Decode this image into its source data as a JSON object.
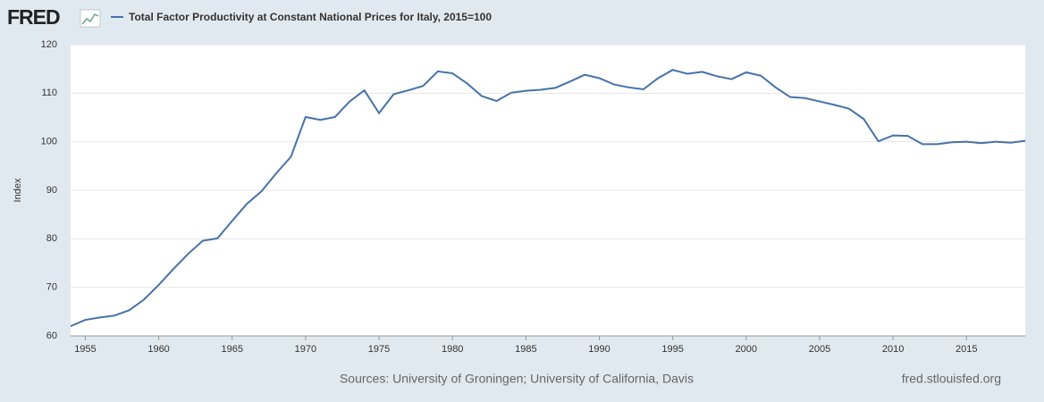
{
  "chart_data": {
    "type": "line",
    "logo": "FRED",
    "ylabel": "Index",
    "source": "Sources: University of Groningen; University of California, Davis",
    "site": "fred.stlouisfed.org",
    "x": [
      1954,
      1955,
      1956,
      1957,
      1958,
      1959,
      1960,
      1961,
      1962,
      1963,
      1964,
      1965,
      1966,
      1967,
      1968,
      1969,
      1970,
      1971,
      1972,
      1973,
      1974,
      1975,
      1976,
      1977,
      1978,
      1979,
      1980,
      1981,
      1982,
      1983,
      1984,
      1985,
      1986,
      1987,
      1988,
      1989,
      1990,
      1991,
      1992,
      1993,
      1994,
      1995,
      1996,
      1997,
      1998,
      1999,
      2000,
      2001,
      2002,
      2003,
      2004,
      2005,
      2006,
      2007,
      2008,
      2009,
      2010,
      2011,
      2012,
      2013,
      2014,
      2015,
      2016,
      2017,
      2018,
      2019
    ],
    "series": [
      {
        "name": "Total Factor Productivity at Constant National Prices for Italy, 2015=100",
        "color": "#4572a7",
        "values": [
          62.0,
          63.3,
          63.8,
          64.2,
          65.3,
          67.5,
          70.5,
          73.8,
          76.9,
          79.6,
          80.1,
          83.7,
          87.2,
          89.8,
          93.5,
          96.9,
          105.1,
          104.5,
          105.1,
          108.3,
          110.6,
          105.9,
          109.8,
          110.6,
          111.5,
          114.5,
          114.1,
          112.0,
          109.4,
          108.4,
          110.1,
          110.5,
          110.7,
          111.1,
          112.4,
          113.8,
          113.1,
          111.8,
          111.2,
          110.8,
          113.1,
          114.8,
          114.0,
          114.4,
          113.5,
          112.9,
          114.3,
          113.6,
          111.2,
          109.2,
          109.0,
          108.3,
          107.6,
          106.8,
          104.7,
          100.1,
          101.3,
          101.2,
          99.5,
          99.5,
          99.9,
          100.0,
          99.7,
          100.0,
          99.8,
          100.2
        ]
      }
    ],
    "xlim": [
      1954,
      2019
    ],
    "xticks": [
      1955,
      1960,
      1965,
      1970,
      1975,
      1980,
      1985,
      1990,
      1995,
      2000,
      2005,
      2010,
      2015
    ],
    "ylim": [
      60,
      120
    ],
    "yticks": [
      60,
      70,
      80,
      90,
      100,
      110,
      120
    ],
    "grid": true
  }
}
